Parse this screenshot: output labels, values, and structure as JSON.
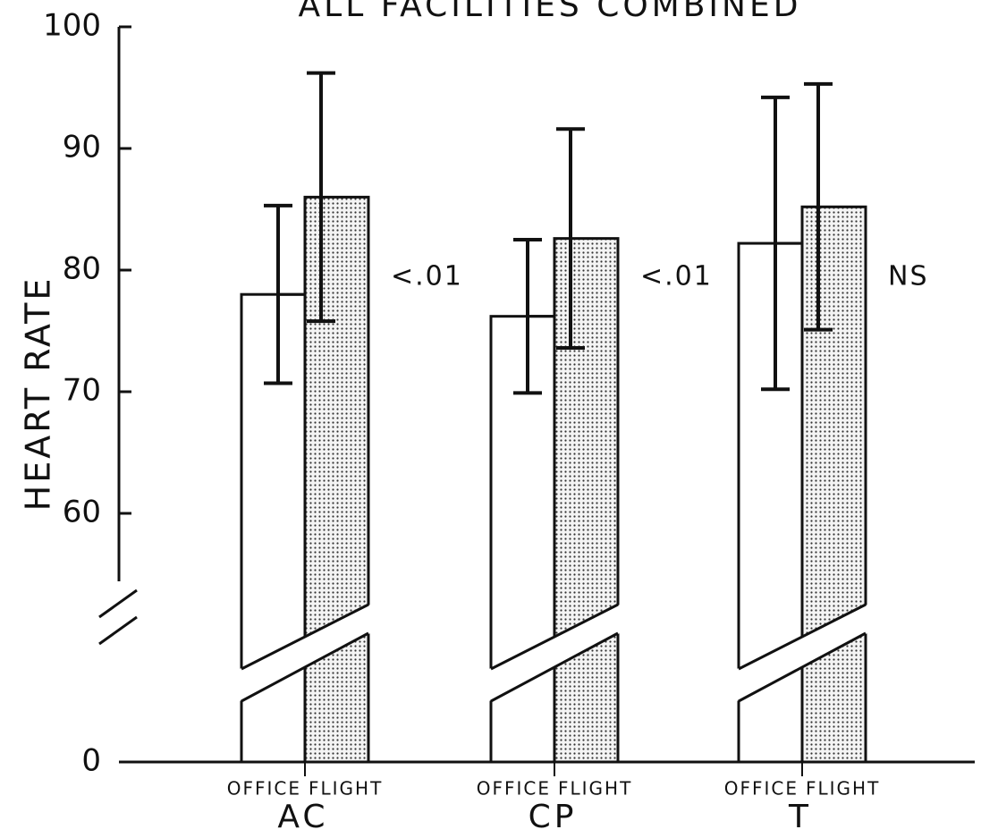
{
  "chart_data": {
    "type": "bar",
    "title": "ALL FACILITIES COMBINED",
    "y_label": "HEART RATE",
    "categories": [
      "AC",
      "CP",
      "T"
    ],
    "series": [
      {
        "name": "OFFICE",
        "color": "#ffffff",
        "values": [
          78,
          76.2,
          82.2
        ],
        "errors": [
          7.3,
          6.3,
          12
        ]
      },
      {
        "name": "FLIGHT",
        "color": "#d8d8d8",
        "values": [
          86,
          82.6,
          85.2
        ],
        "errors": [
          10.2,
          9,
          10.1
        ]
      }
    ],
    "annotations": [
      "<.01",
      "<.01",
      "NS"
    ],
    "ylim": [
      0,
      100
    ],
    "ybreak": 50,
    "yticks": [
      0,
      60,
      70,
      80,
      90,
      100
    ]
  }
}
